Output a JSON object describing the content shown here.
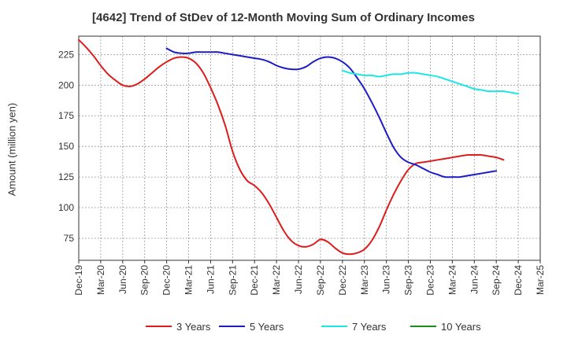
{
  "chart_data": {
    "type": "line",
    "title": "[4642]  Trend of StDev of 12-Month Moving Sum of Ordinary Incomes",
    "xlabel": "",
    "ylabel": "Amount (million yen)",
    "ylim": [
      57,
      240
    ],
    "yticks": [
      75,
      100,
      125,
      150,
      175,
      200,
      225
    ],
    "x_tick_labels": [
      "Dec-19",
      "Mar-20",
      "Jun-20",
      "Sep-20",
      "Dec-20",
      "Mar-21",
      "Jun-21",
      "Sep-21",
      "Dec-21",
      "Mar-22",
      "Jun-22",
      "Sep-22",
      "Dec-22",
      "Mar-23",
      "Jun-23",
      "Sep-23",
      "Dec-23",
      "Mar-24",
      "Jun-24",
      "Sep-24",
      "Dec-24",
      "Mar-25"
    ],
    "grid": true,
    "legend_position": "bottom",
    "series": [
      {
        "name": "3 Years",
        "color": "#dd1c1c",
        "start_month_index": 0,
        "values": [
          237,
          231,
          224,
          216,
          209,
          204,
          200,
          199,
          201,
          205,
          210,
          215,
          219,
          222,
          223,
          222,
          218,
          210,
          198,
          184,
          167,
          146,
          131,
          122,
          118,
          112,
          103,
          92,
          81,
          73,
          69,
          68,
          70,
          74,
          72,
          67,
          63,
          62,
          63,
          66,
          73,
          84,
          98,
          111,
          122,
          131,
          136,
          137,
          138,
          139,
          140,
          141,
          142,
          143,
          143,
          143,
          142,
          141,
          139
        ]
      },
      {
        "name": "5 Years",
        "color": "#1c1cc8",
        "start_month_index": 12,
        "values": [
          230,
          227,
          226,
          226,
          227,
          227,
          227,
          227,
          226,
          225,
          224,
          223,
          222,
          221,
          219,
          216,
          214,
          213,
          213,
          215,
          219,
          222,
          223,
          222,
          219,
          214,
          206,
          197,
          186,
          174,
          161,
          149,
          141,
          137,
          135,
          132,
          129,
          127,
          125,
          125,
          125,
          126,
          127,
          128,
          129,
          130
        ]
      },
      {
        "name": "7 Years",
        "color": "#1ce6e6",
        "start_month_index": 36,
        "values": [
          212,
          210,
          209,
          208,
          208,
          207,
          208,
          209,
          209,
          210,
          210,
          209,
          208,
          207,
          205,
          203,
          201,
          199,
          197,
          196,
          195,
          195,
          195,
          194,
          193
        ]
      },
      {
        "name": "10 Years",
        "color": "#1c8c1c",
        "start_month_index": 0,
        "values": []
      }
    ]
  }
}
